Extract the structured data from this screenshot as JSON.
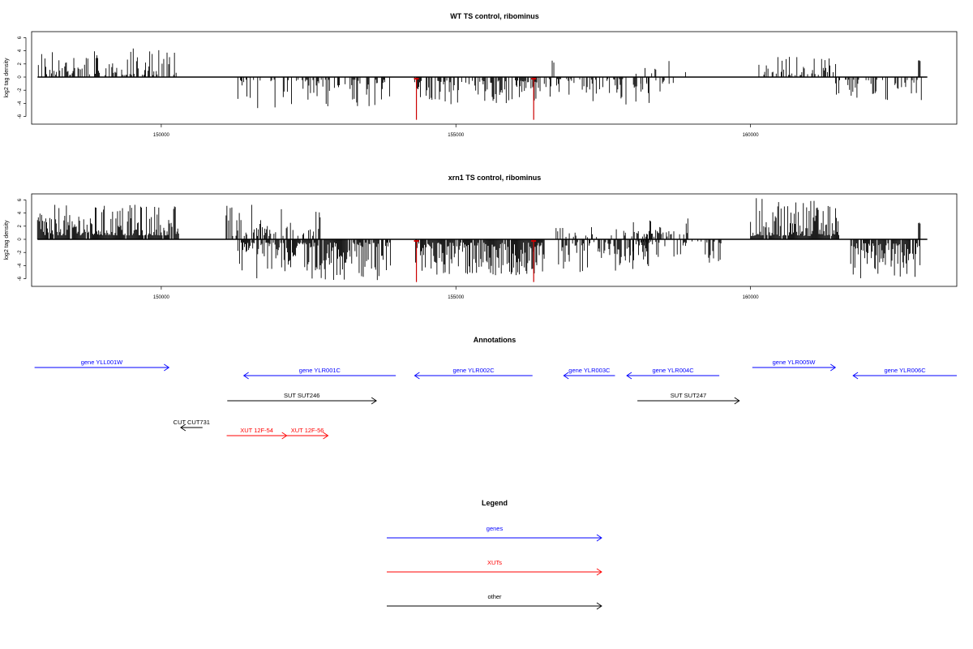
{
  "chart_data": [
    {
      "type": "bar",
      "title": "WT TS control, ribominus",
      "ylabel": "log2 tag density",
      "xlabel": "",
      "xlim": [
        147800,
        163500
      ],
      "ylim": [
        -7,
        7
      ],
      "yticks": [
        -6,
        -4,
        -2,
        0,
        2,
        4,
        6
      ],
      "xticks": [
        150000,
        155000,
        160000
      ],
      "colors": {
        "default": "#000000",
        "highlight": "#cc0000"
      },
      "segments": [
        {
          "from": 147900,
          "to": 150320,
          "strand": 1,
          "min": 0.3,
          "max": 4.5,
          "density": 0.5
        },
        {
          "from": 151300,
          "to": 153900,
          "strand": -1,
          "min": 0.4,
          "max": 4.8,
          "density": 0.4
        },
        {
          "from": 154300,
          "to": 156450,
          "strand": -1,
          "min": 0.5,
          "max": 4.2,
          "density": 0.55
        },
        {
          "from": 156500,
          "to": 158300,
          "strand": -1,
          "min": 0.3,
          "max": 4.2,
          "density": 0.35
        },
        {
          "from": 156620,
          "to": 156680,
          "strand": 1,
          "min": 2.0,
          "max": 2.8,
          "density": 0.3
        },
        {
          "from": 158000,
          "to": 158900,
          "strand": 1,
          "min": 0.5,
          "max": 2.8,
          "density": 0.12
        },
        {
          "from": 158100,
          "to": 158800,
          "strand": -1,
          "min": 0.5,
          "max": 2.5,
          "density": 0.12
        },
        {
          "from": 160100,
          "to": 161450,
          "strand": 1,
          "min": 0.3,
          "max": 3.3,
          "density": 0.4
        },
        {
          "from": 161400,
          "to": 162900,
          "strand": -1,
          "min": 0.4,
          "max": 3.5,
          "density": 0.3
        },
        {
          "from": 162850,
          "to": 162880,
          "strand": 1,
          "min": 2.4,
          "max": 2.6,
          "density": 1.0
        }
      ],
      "highlights": [
        {
          "x": 154330,
          "value": -6.5
        },
        {
          "x": 156320,
          "value": -6.5
        }
      ]
    },
    {
      "type": "bar",
      "title": "xrn1 TS control, ribominus",
      "ylabel": "log2 tag density",
      "xlabel": "",
      "xlim": [
        147800,
        163500
      ],
      "ylim": [
        -7,
        7
      ],
      "yticks": [
        -6,
        -4,
        -2,
        0,
        2,
        4,
        6
      ],
      "xticks": [
        150000,
        155000,
        160000
      ],
      "colors": {
        "default": "#000000",
        "highlight": "#cc0000"
      },
      "segments": [
        {
          "from": 147900,
          "to": 150300,
          "strand": 1,
          "min": 0.6,
          "max": 5.3,
          "density": 0.9
        },
        {
          "from": 151100,
          "to": 152700,
          "strand": 1,
          "min": 0.5,
          "max": 5.4,
          "density": 0.5
        },
        {
          "from": 151300,
          "to": 153900,
          "strand": -1,
          "min": 0.5,
          "max": 6.2,
          "density": 0.8
        },
        {
          "from": 154300,
          "to": 156500,
          "strand": -1,
          "min": 0.5,
          "max": 5.5,
          "density": 0.9
        },
        {
          "from": 156700,
          "to": 158300,
          "strand": -1,
          "min": 0.4,
          "max": 5.2,
          "density": 0.6
        },
        {
          "from": 156700,
          "to": 158000,
          "strand": 1,
          "min": 0.3,
          "max": 2.0,
          "density": 0.2
        },
        {
          "from": 157900,
          "to": 159000,
          "strand": 1,
          "min": 0.4,
          "max": 3.2,
          "density": 0.45
        },
        {
          "from": 158000,
          "to": 159500,
          "strand": -1,
          "min": 0.3,
          "max": 4.0,
          "density": 0.35
        },
        {
          "from": 160000,
          "to": 161500,
          "strand": 1,
          "min": 0.5,
          "max": 6.3,
          "density": 0.95
        },
        {
          "from": 161700,
          "to": 162900,
          "strand": -1,
          "min": 0.6,
          "max": 6.0,
          "density": 0.9
        },
        {
          "from": 162850,
          "to": 162880,
          "strand": 1,
          "min": 2.4,
          "max": 2.6,
          "density": 1.0
        }
      ],
      "highlights": [
        {
          "x": 154330,
          "value": -6.5
        },
        {
          "x": 156320,
          "value": -6.5
        }
      ]
    }
  ],
  "annotations": {
    "title": "Annotations",
    "items": [
      {
        "label": "gene YLL001W",
        "start": 147850,
        "end": 150130,
        "strand": "+",
        "row": 0,
        "color": "#0000ff"
      },
      {
        "label": "gene YLR001C",
        "start": 151400,
        "end": 153980,
        "strand": "-",
        "row": 1,
        "color": "#0000ff"
      },
      {
        "label": "gene YLR002C",
        "start": 154300,
        "end": 156300,
        "strand": "-",
        "row": 1,
        "color": "#0000ff"
      },
      {
        "label": "gene YLR003C",
        "start": 156830,
        "end": 157700,
        "strand": "-",
        "row": 1,
        "color": "#0000ff"
      },
      {
        "label": "gene YLR004C",
        "start": 157900,
        "end": 159470,
        "strand": "-",
        "row": 1,
        "color": "#0000ff"
      },
      {
        "label": "gene YLR005W",
        "start": 160030,
        "end": 161440,
        "strand": "+",
        "row": 0,
        "color": "#0000ff"
      },
      {
        "label": "gene YLR006C",
        "start": 161740,
        "end": 163500,
        "strand": "-",
        "row": 1,
        "color": "#0000ff"
      },
      {
        "label": "SUT SUT246",
        "start": 151120,
        "end": 153650,
        "strand": "+",
        "row": 2,
        "color": "#000000"
      },
      {
        "label": "SUT SUT247",
        "start": 158080,
        "end": 159810,
        "strand": "+",
        "row": 2,
        "color": "#000000"
      },
      {
        "label": "CUT CUT731",
        "start": 150330,
        "end": 150700,
        "strand": "-",
        "row": 3,
        "color": "#000000"
      },
      {
        "label": "XUT 12F-54",
        "start": 151110,
        "end": 152130,
        "strand": "+",
        "row": 4,
        "color": "#ff0000"
      },
      {
        "label": "XUT 12F-56",
        "start": 152130,
        "end": 152830,
        "strand": "+",
        "row": 4,
        "color": "#ff0000"
      }
    ]
  },
  "legend": {
    "title": "Legend",
    "items": [
      {
        "label": "genes",
        "color": "#0000ff"
      },
      {
        "label": "XUTs",
        "color": "#ff0000"
      },
      {
        "label": "other",
        "color": "#000000"
      }
    ]
  }
}
